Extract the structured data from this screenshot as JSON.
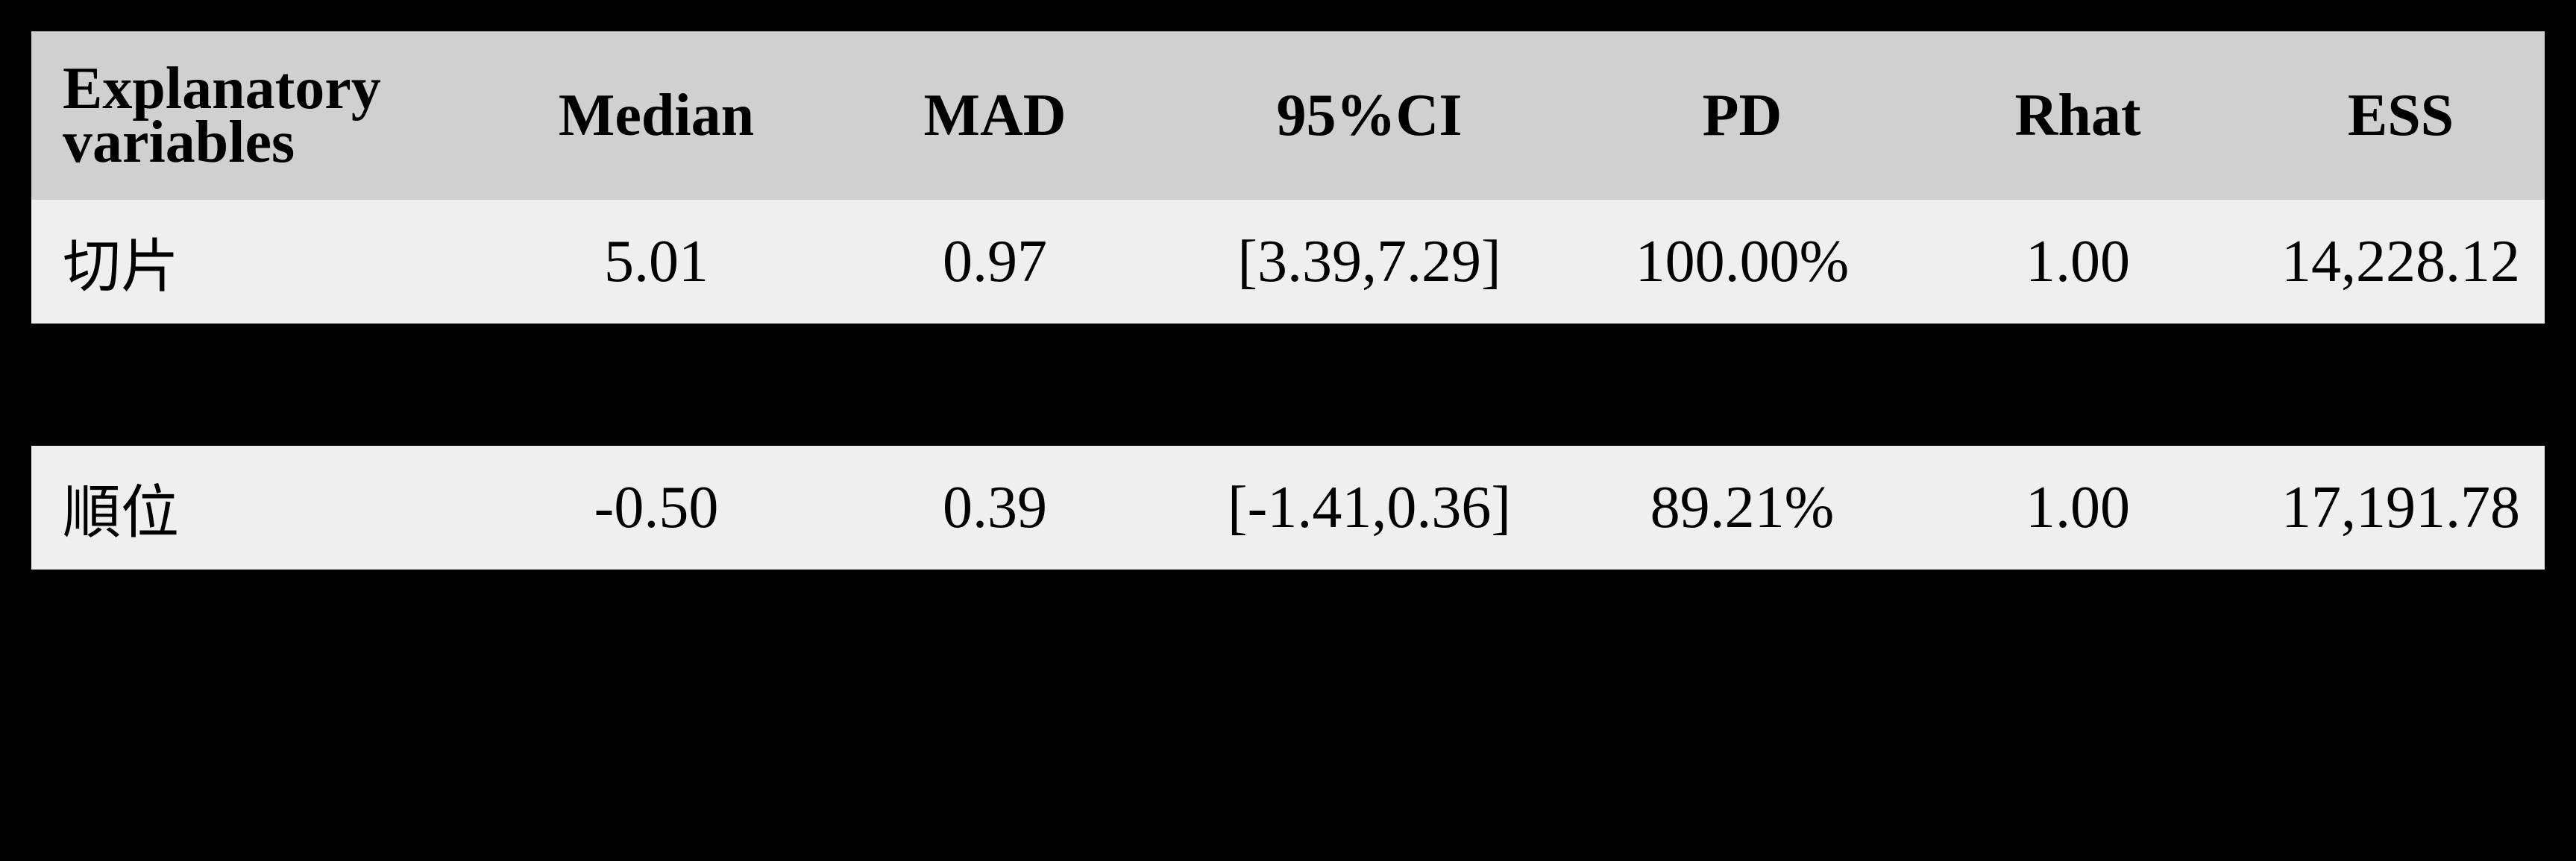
{
  "table": {
    "headers": [
      "Explanatory variables",
      "Median",
      "MAD",
      "95%CI",
      "PD",
      "Rhat",
      "ESS"
    ],
    "rows": [
      [
        "切片",
        "5.01",
        "0.97",
        "[3.39,7.29]",
        "100.00%",
        "1.00",
        "14,228.12"
      ],
      [
        "順位",
        "-0.50",
        "0.39",
        "[-1.41,0.36]",
        "89.21%",
        "1.00",
        "17,191.78"
      ]
    ]
  },
  "colors": {
    "background": "#000000",
    "header_bg": "#d0d0d0",
    "row_bg": "#efefef"
  }
}
